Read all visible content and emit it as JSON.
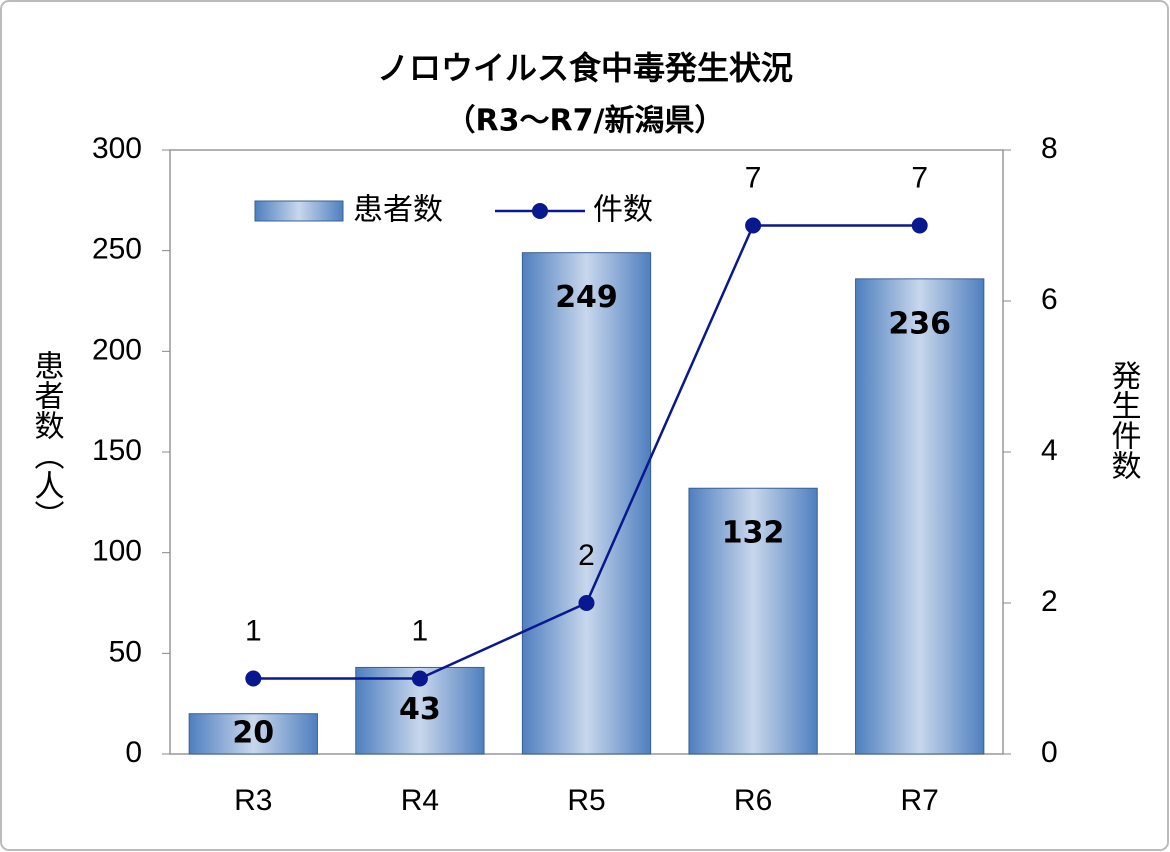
{
  "chart_data": {
    "type": "bar",
    "title": "ノロウイルス食中毒発生状況",
    "subtitle": "（R3～R7/新潟県）",
    "y_label": "患者数（人）",
    "y2_label": "発生件数",
    "categories": [
      "R3",
      "R4",
      "R5",
      "R6",
      "R7"
    ],
    "series": [
      {
        "name": "患者数",
        "type": "bar",
        "color": "#4f7fbf",
        "values": [
          20,
          43,
          249,
          132,
          236
        ]
      },
      {
        "name": "件数",
        "type": "line",
        "axis": "y2",
        "color": "#0a1890",
        "values": [
          1,
          1,
          2,
          7,
          7
        ]
      }
    ],
    "ylim": [
      0,
      300
    ],
    "yticks": [
      0,
      50,
      100,
      150,
      200,
      250,
      300
    ],
    "y2lim": [
      0,
      8
    ],
    "y2ticks": [
      0,
      2,
      4,
      6,
      8
    ],
    "legend": "upper left"
  }
}
